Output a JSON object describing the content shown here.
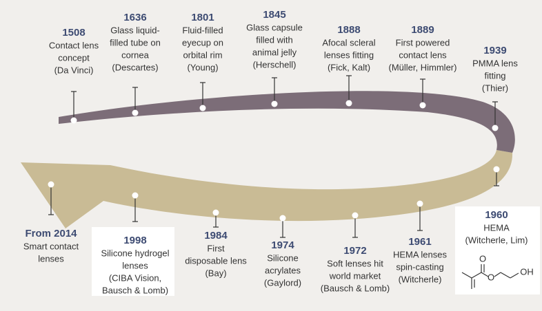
{
  "timeline": {
    "events": [
      {
        "year": "1508",
        "lines": [
          "Contact lens",
          "concept",
          "(Da Vinci)"
        ]
      },
      {
        "year": "1636",
        "lines": [
          "Glass liquid-",
          "filled tube on",
          "cornea",
          "(Descartes)"
        ]
      },
      {
        "year": "1801",
        "lines": [
          "Fluid-filled",
          "eyecup on",
          "orbital rim",
          "(Young)"
        ]
      },
      {
        "year": "1845",
        "lines": [
          "Glass capsule",
          "filled with",
          "animal jelly",
          "(Herschell)"
        ]
      },
      {
        "year": "1888",
        "lines": [
          "Afocal scleral",
          "lenses fitting",
          "(Fick, Kalt)"
        ]
      },
      {
        "year": "1889",
        "lines": [
          "First powered",
          "contact lens",
          "(Müller, Himmler)"
        ]
      },
      {
        "year": "1939",
        "lines": [
          "PMMA lens",
          "fitting",
          "(Thier)"
        ]
      },
      {
        "year": "1960",
        "lines": [
          "HEMA",
          "(Witcherle, Lim)"
        ]
      },
      {
        "year": "1961",
        "lines": [
          "HEMA lenses",
          "spin-casting",
          "(Witcherle)"
        ]
      },
      {
        "year": "1972",
        "lines": [
          "Soft lenses hit",
          "world market",
          "(Bausch & Lomb)"
        ]
      },
      {
        "year": "1974",
        "lines": [
          "Silicone",
          "acrylates",
          "(Gaylord)"
        ]
      },
      {
        "year": "1984",
        "lines": [
          "First",
          "disposable lens",
          "(Bay)"
        ]
      },
      {
        "year": "1998",
        "lines": [
          "Silicone hydrogel",
          "lenses",
          "(CIBA Vision,",
          "Bausch & Lomb)"
        ]
      },
      {
        "year": "From 2014",
        "lines": [
          "Smart contact",
          "lenses"
        ]
      }
    ]
  },
  "hema_structure": {
    "labels": [
      "O",
      "O",
      "OH"
    ]
  }
}
